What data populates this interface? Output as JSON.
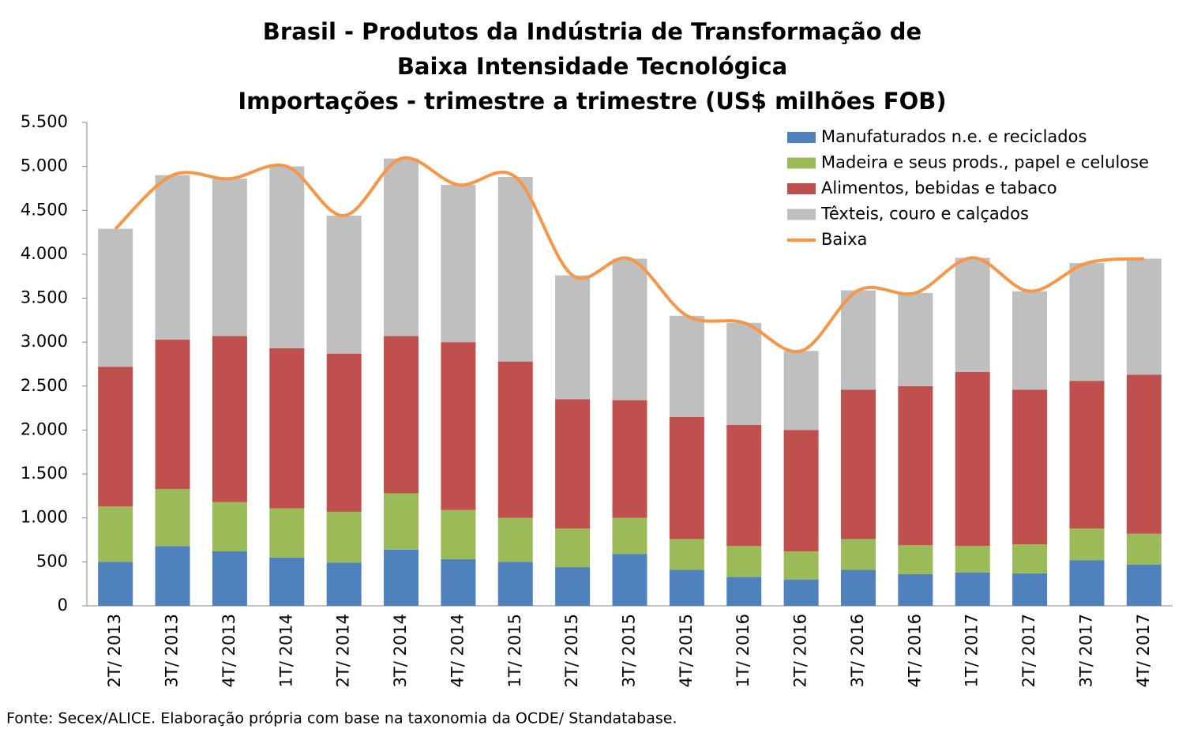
{
  "chart_data": {
    "type": "stacked_bar_line",
    "title": [
      "Brasil - Produtos da Indústria de Transformação de",
      "Baixa Intensidade Tecnológica",
      "Importações - trimestre a trimestre (US$ milhões FOB)"
    ],
    "source": "Fonte: Secex/ALICE. Elaboração própria com base na taxonomia da OCDE/ Standatabase.",
    "categories": [
      "2T/ 2013",
      "3T/ 2013",
      "4T/ 2013",
      "1T/ 2014",
      "2T/ 2014",
      "3T/ 2014",
      "4T/ 2014",
      "1T/ 2015",
      "2T/ 2015",
      "3T/ 2015",
      "4T/ 2015",
      "1T/ 2016",
      "2T/ 2016",
      "3T/ 2016",
      "4T/ 2016",
      "1T/ 2017",
      "2T/ 2017",
      "3T/ 2017",
      "4T/ 2017"
    ],
    "series": [
      {
        "name": "Manufaturados n.e. e reciclados",
        "color": "#4f81bd",
        "values": [
          500,
          680,
          620,
          550,
          490,
          640,
          530,
          500,
          440,
          590,
          410,
          330,
          300,
          410,
          360,
          380,
          370,
          520,
          470
        ]
      },
      {
        "name": "Madeira e seus prods., papel e celulose",
        "color": "#9bbb59",
        "values": [
          630,
          650,
          560,
          560,
          580,
          640,
          560,
          500,
          440,
          410,
          350,
          350,
          320,
          350,
          330,
          300,
          330,
          360,
          350
        ]
      },
      {
        "name": "Alimentos, bebidas e tabaco",
        "color": "#c0504d",
        "values": [
          1590,
          1700,
          1890,
          1820,
          1800,
          1790,
          1910,
          1780,
          1470,
          1340,
          1390,
          1380,
          1380,
          1700,
          1810,
          1980,
          1760,
          1680,
          1810
        ]
      },
      {
        "name": "Têxteis, couro e calçados",
        "color": "#bfbfbf",
        "values": [
          1570,
          1870,
          1790,
          2070,
          1570,
          2020,
          1790,
          2100,
          1410,
          1610,
          1150,
          1160,
          900,
          1130,
          1060,
          1300,
          1120,
          1340,
          1320
        ]
      },
      {
        "name": "Baixa",
        "color": "#f79646",
        "type": "line",
        "values": [
          4290,
          4900,
          4860,
          5000,
          4440,
          5090,
          4790,
          4880,
          3760,
          3950,
          3300,
          3220,
          2900,
          3590,
          3560,
          3960,
          3580,
          3900,
          3950
        ]
      }
    ],
    "ylim": [
      0,
      5500
    ],
    "yticks": [
      0,
      500,
      {
        "value": 1000,
        "label": "1.000"
      },
      {
        "value": 1500,
        "label": "1.500"
      },
      {
        "value": 2000,
        "label": "2.000"
      },
      {
        "value": 2500,
        "label": "2.500"
      },
      {
        "value": 3000,
        "label": "3.000"
      },
      {
        "value": 3500,
        "label": "3.500"
      },
      {
        "value": 4000,
        "label": "4.000"
      },
      {
        "value": 4500,
        "label": "4.500"
      },
      {
        "value": 5000,
        "label": "5.000"
      },
      {
        "value": 5500,
        "label": "5.500"
      }
    ],
    "legend": "upper right",
    "grid": false
  }
}
